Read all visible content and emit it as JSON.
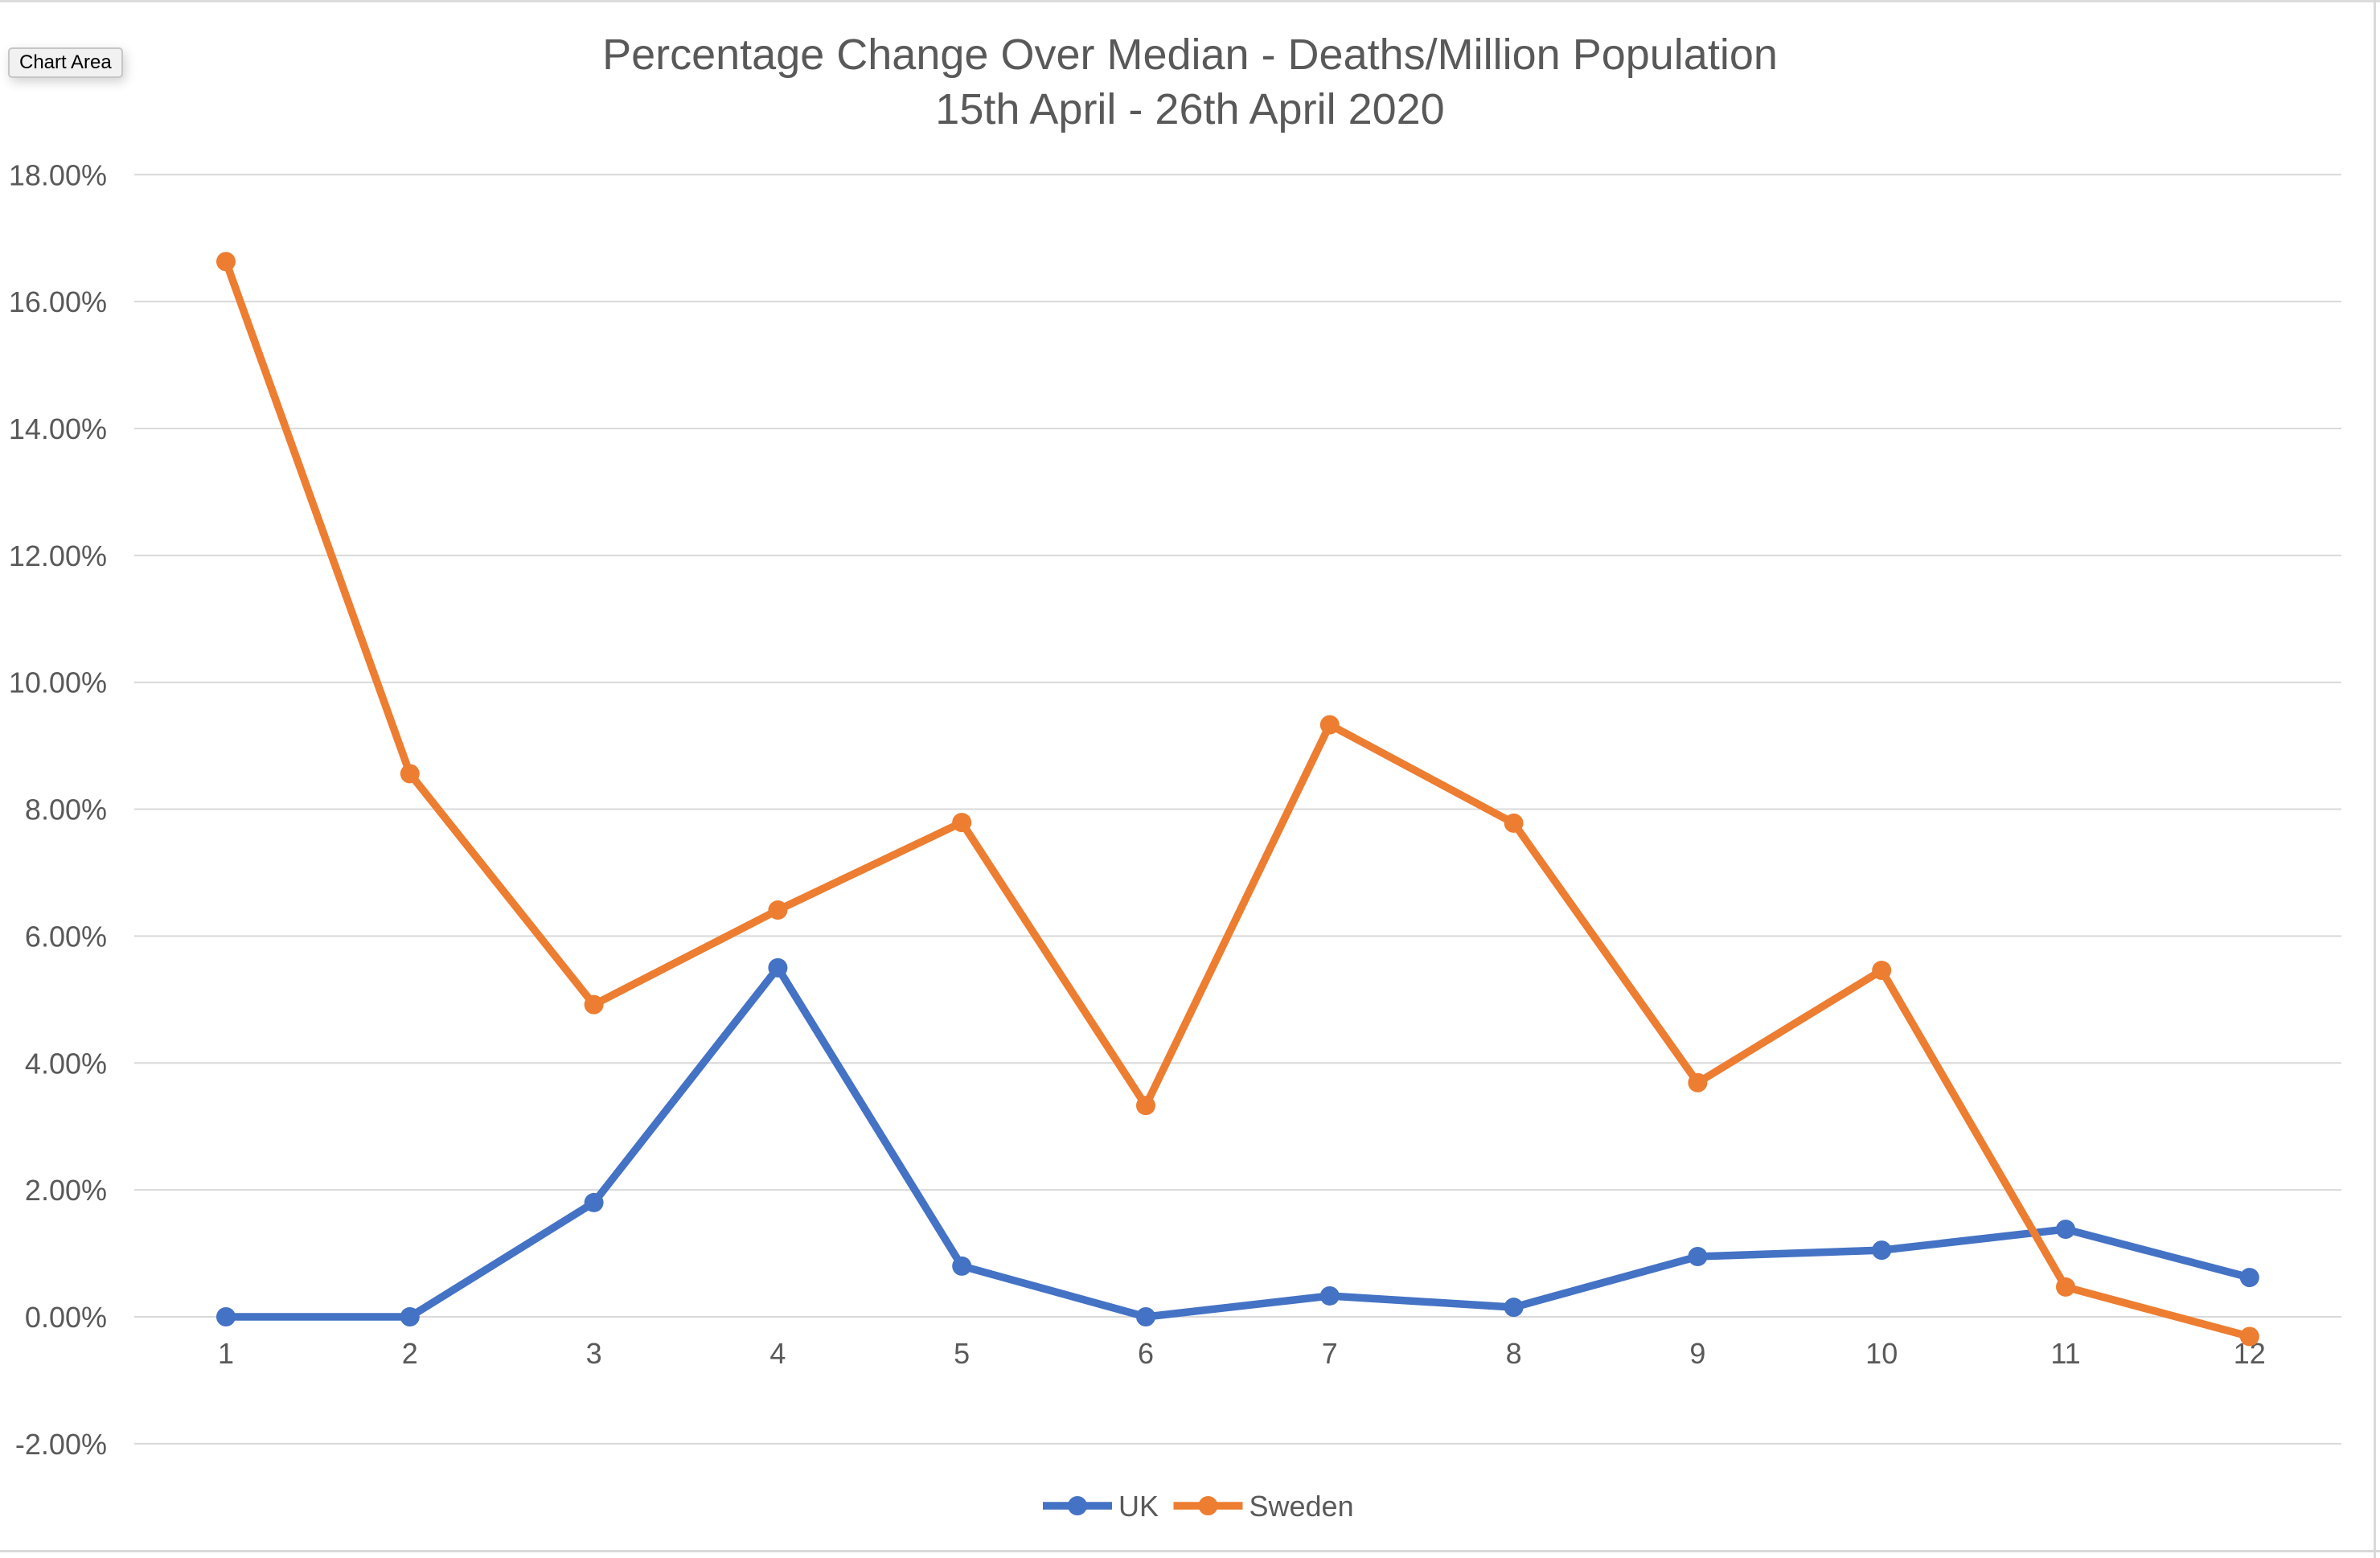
{
  "window": {
    "border_color": "#d9d9d9"
  },
  "tooltip": {
    "label": "Chart Area"
  },
  "title": {
    "line1": "Percentage Change Over Median - Deaths/Million Population",
    "line2": "15th April - 26th April 2020"
  },
  "chart_data": {
    "type": "line",
    "title": "Percentage Change Over Median - Deaths/Million Population",
    "subtitle": "15th April - 26th April 2020",
    "unit": "percent",
    "categories": [
      "1",
      "2",
      "3",
      "4",
      "5",
      "6",
      "7",
      "8",
      "9",
      "10",
      "11",
      "12"
    ],
    "series": [
      {
        "name": "UK",
        "color": "#4472C4",
        "values": [
          0.0,
          0.0,
          1.8,
          5.5,
          0.8,
          0.0,
          0.33,
          0.15,
          0.95,
          1.05,
          1.38,
          0.62
        ]
      },
      {
        "name": "Sweden",
        "color": "#ED7D31",
        "values": [
          16.63,
          8.56,
          4.92,
          6.41,
          7.79,
          3.33,
          9.33,
          7.78,
          3.69,
          5.46,
          0.47,
          -0.31
        ]
      }
    ],
    "ylim": [
      -2,
      18
    ],
    "y_tick_values": [
      18,
      16,
      14,
      12,
      10,
      8,
      6,
      4,
      2,
      0,
      -2
    ],
    "y_ticks": [
      "18.00%",
      "16.00%",
      "14.00%",
      "12.00%",
      "10.00%",
      "8.00%",
      "6.00%",
      "4.00%",
      "2.00%",
      "0.00%",
      "-2.00%"
    ],
    "grid": true,
    "legend_position": "bottom",
    "text_color": "#595959",
    "grid_color": "#D9D9D9"
  }
}
